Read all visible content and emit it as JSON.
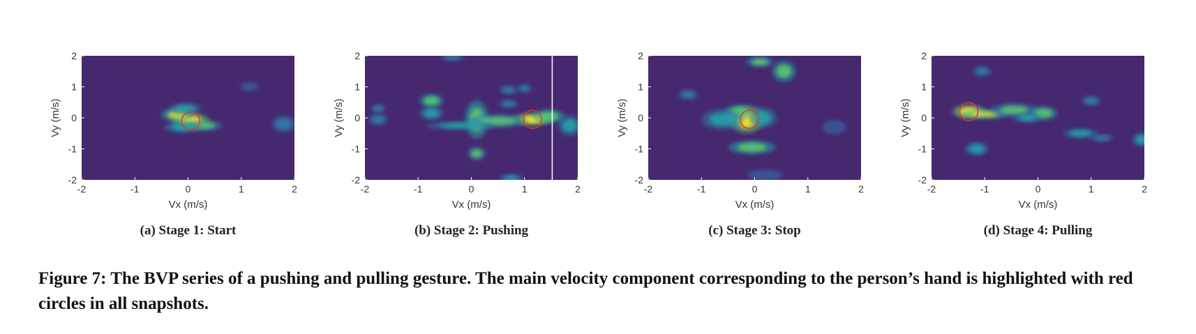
{
  "figure": {
    "caption": "Figure 7: The BVP series of a pushing and pulling gesture. The main velocity component corresponding to the person’s hand is highlighted with red circles in all snapshots."
  },
  "colors": {
    "background": "#46286f",
    "colormap": [
      "#46286f",
      "#3e4f94",
      "#2e7eaa",
      "#21a7a4",
      "#5ccb70",
      "#d7e13a",
      "#fde725"
    ],
    "highlight_circle": "#e8352b",
    "marker_line": "#ffffff"
  },
  "chart_data": [
    {
      "type": "heatmap",
      "caption": "(a) Stage 1: Start",
      "xlabel": "Vx (m/s)",
      "ylabel": "Vy (m/s)",
      "xlim": [
        -2,
        2
      ],
      "ylim": [
        -2,
        2
      ],
      "xticks": [
        -2,
        -1,
        0,
        1,
        2
      ],
      "yticks": [
        -2,
        -1,
        0,
        1,
        2
      ],
      "x_tick_labels": [
        "-2",
        "-1",
        "0",
        "1",
        "2"
      ],
      "y_tick_labels": [
        "-2",
        "-1",
        "0",
        "1",
        "2"
      ],
      "blobs": [
        {
          "x": 0.05,
          "y": -0.1,
          "sx": 0.16,
          "sy": 0.12,
          "v": 1.0
        },
        {
          "x": -0.2,
          "y": 0.1,
          "sx": 0.14,
          "sy": 0.1,
          "v": 0.65
        },
        {
          "x": 0.3,
          "y": -0.25,
          "sx": 0.16,
          "sy": 0.08,
          "v": 0.5
        },
        {
          "x": -0.1,
          "y": -0.3,
          "sx": 0.16,
          "sy": 0.08,
          "v": 0.45
        },
        {
          "x": -0.05,
          "y": 0.3,
          "sx": 0.14,
          "sy": 0.08,
          "v": 0.35
        },
        {
          "x": 1.8,
          "y": -0.2,
          "sx": 0.1,
          "sy": 0.12,
          "v": 0.22
        },
        {
          "x": 1.15,
          "y": 1.0,
          "sx": 0.08,
          "sy": 0.06,
          "v": 0.12
        }
      ],
      "highlight": {
        "x": 0.05,
        "y": -0.1,
        "r": 0.17
      },
      "vline": null
    },
    {
      "type": "heatmap",
      "caption": "(b) Stage 2: Pushing",
      "xlabel": "Vx (m/s)",
      "ylabel": "Vy (m/s)",
      "xlim": [
        -2,
        2
      ],
      "ylim": [
        -2,
        2
      ],
      "xticks": [
        -2,
        -1,
        0,
        1,
        2
      ],
      "yticks": [
        -2,
        -1,
        0,
        1,
        2
      ],
      "x_tick_labels": [
        "-2",
        "-1",
        "0",
        "1",
        "2"
      ],
      "y_tick_labels": [
        "-2",
        "-1",
        "0",
        "1",
        "2"
      ],
      "blobs": [
        {
          "x": 1.15,
          "y": -0.05,
          "sx": 0.18,
          "sy": 0.09,
          "v": 1.0
        },
        {
          "x": 1.45,
          "y": 0.05,
          "sx": 0.14,
          "sy": 0.1,
          "v": 0.55
        },
        {
          "x": 0.1,
          "y": -0.05,
          "sx": 0.1,
          "sy": 0.28,
          "v": 0.6
        },
        {
          "x": 0.5,
          "y": -0.1,
          "sx": 0.25,
          "sy": 0.1,
          "v": 0.5
        },
        {
          "x": -0.2,
          "y": -0.25,
          "sx": 0.3,
          "sy": 0.06,
          "v": 0.35
        },
        {
          "x": -0.75,
          "y": 0.55,
          "sx": 0.1,
          "sy": 0.1,
          "v": 0.55
        },
        {
          "x": -0.75,
          "y": 0.15,
          "sx": 0.1,
          "sy": 0.1,
          "v": 0.45
        },
        {
          "x": 1.85,
          "y": -0.25,
          "sx": 0.1,
          "sy": 0.15,
          "v": 0.45
        },
        {
          "x": -1.75,
          "y": -0.05,
          "sx": 0.08,
          "sy": 0.08,
          "v": 0.25
        },
        {
          "x": 0.1,
          "y": -1.15,
          "sx": 0.08,
          "sy": 0.1,
          "v": 0.5
        },
        {
          "x": 0.7,
          "y": 0.9,
          "sx": 0.08,
          "sy": 0.06,
          "v": 0.25
        },
        {
          "x": 1.0,
          "y": 0.95,
          "sx": 0.06,
          "sy": 0.06,
          "v": 0.2
        },
        {
          "x": 0.7,
          "y": 0.45,
          "sx": 0.08,
          "sy": 0.06,
          "v": 0.2
        },
        {
          "x": 0.75,
          "y": -1.95,
          "sx": 0.1,
          "sy": 0.06,
          "v": 0.3
        },
        {
          "x": -0.35,
          "y": 1.95,
          "sx": 0.1,
          "sy": 0.05,
          "v": 0.18
        },
        {
          "x": -1.75,
          "y": 0.3,
          "sx": 0.06,
          "sy": 0.06,
          "v": 0.15
        }
      ],
      "highlight": {
        "x": 1.15,
        "y": -0.05,
        "r": 0.17
      },
      "vline": 1.52
    },
    {
      "type": "heatmap",
      "caption": "(c) Stage 3: Stop",
      "xlabel": "Vx (m/s)",
      "ylabel": "Vy (m/s)",
      "xlim": [
        -2,
        2
      ],
      "ylim": [
        -2,
        2
      ],
      "xticks": [
        -2,
        -1,
        0,
        1,
        2
      ],
      "yticks": [
        -2,
        -1,
        0,
        1,
        2
      ],
      "x_tick_labels": [
        "-2",
        "-1",
        "0",
        "1",
        "2"
      ],
      "y_tick_labels": [
        "-2",
        "-1",
        "0",
        "1",
        "2"
      ],
      "blobs": [
        {
          "x": -0.15,
          "y": -0.05,
          "sx": 0.15,
          "sy": 0.2,
          "v": 1.0
        },
        {
          "x": -0.3,
          "y": 0.2,
          "sx": 0.12,
          "sy": 0.1,
          "v": 0.6
        },
        {
          "x": -0.6,
          "y": -0.05,
          "sx": 0.18,
          "sy": 0.15,
          "v": 0.35
        },
        {
          "x": 0.15,
          "y": 0.0,
          "sx": 0.12,
          "sy": 0.15,
          "v": 0.45
        },
        {
          "x": -0.05,
          "y": -0.95,
          "sx": 0.2,
          "sy": 0.1,
          "v": 0.55
        },
        {
          "x": 0.1,
          "y": 1.8,
          "sx": 0.12,
          "sy": 0.08,
          "v": 0.5
        },
        {
          "x": 0.55,
          "y": 1.5,
          "sx": 0.1,
          "sy": 0.15,
          "v": 0.55
        },
        {
          "x": -1.25,
          "y": 0.75,
          "sx": 0.08,
          "sy": 0.07,
          "v": 0.18
        },
        {
          "x": 0.2,
          "y": -1.85,
          "sx": 0.15,
          "sy": 0.08,
          "v": 0.12
        },
        {
          "x": 1.5,
          "y": -0.3,
          "sx": 0.1,
          "sy": 0.1,
          "v": 0.08
        }
      ],
      "highlight": {
        "x": -0.1,
        "y": -0.05,
        "r": 0.17
      },
      "vline": null
    },
    {
      "type": "heatmap",
      "caption": "(d) Stage 4: Pulling",
      "xlabel": "Vx (m/s)",
      "ylabel": "Vy (m/s)",
      "xlim": [
        -2,
        2
      ],
      "ylim": [
        -2,
        2
      ],
      "xticks": [
        -2,
        -1,
        0,
        1,
        2
      ],
      "yticks": [
        -2,
        -1,
        0,
        1,
        2
      ],
      "x_tick_labels": [
        "-2",
        "-1",
        "0",
        "1",
        "2"
      ],
      "y_tick_labels": [
        "-2",
        "-1",
        "0",
        "1",
        "2"
      ],
      "blobs": [
        {
          "x": -1.3,
          "y": 0.2,
          "sx": 0.14,
          "sy": 0.1,
          "v": 1.0
        },
        {
          "x": -1.0,
          "y": 0.12,
          "sx": 0.2,
          "sy": 0.07,
          "v": 0.65
        },
        {
          "x": -0.45,
          "y": 0.25,
          "sx": 0.2,
          "sy": 0.1,
          "v": 0.5
        },
        {
          "x": 0.1,
          "y": 0.15,
          "sx": 0.12,
          "sy": 0.1,
          "v": 0.6
        },
        {
          "x": -0.2,
          "y": 0.0,
          "sx": 0.12,
          "sy": 0.07,
          "v": 0.3
        },
        {
          "x": -1.15,
          "y": -1.0,
          "sx": 0.1,
          "sy": 0.1,
          "v": 0.35
        },
        {
          "x": 1.95,
          "y": -0.7,
          "sx": 0.08,
          "sy": 0.1,
          "v": 0.4
        },
        {
          "x": 0.8,
          "y": -0.5,
          "sx": 0.15,
          "sy": 0.07,
          "v": 0.3
        },
        {
          "x": 1.2,
          "y": -0.65,
          "sx": 0.1,
          "sy": 0.05,
          "v": 0.22
        },
        {
          "x": 1.0,
          "y": 0.55,
          "sx": 0.08,
          "sy": 0.07,
          "v": 0.2
        },
        {
          "x": -1.05,
          "y": 1.5,
          "sx": 0.08,
          "sy": 0.07,
          "v": 0.15
        }
      ],
      "highlight": {
        "x": -1.3,
        "y": 0.2,
        "r": 0.17
      },
      "vline": null
    }
  ]
}
